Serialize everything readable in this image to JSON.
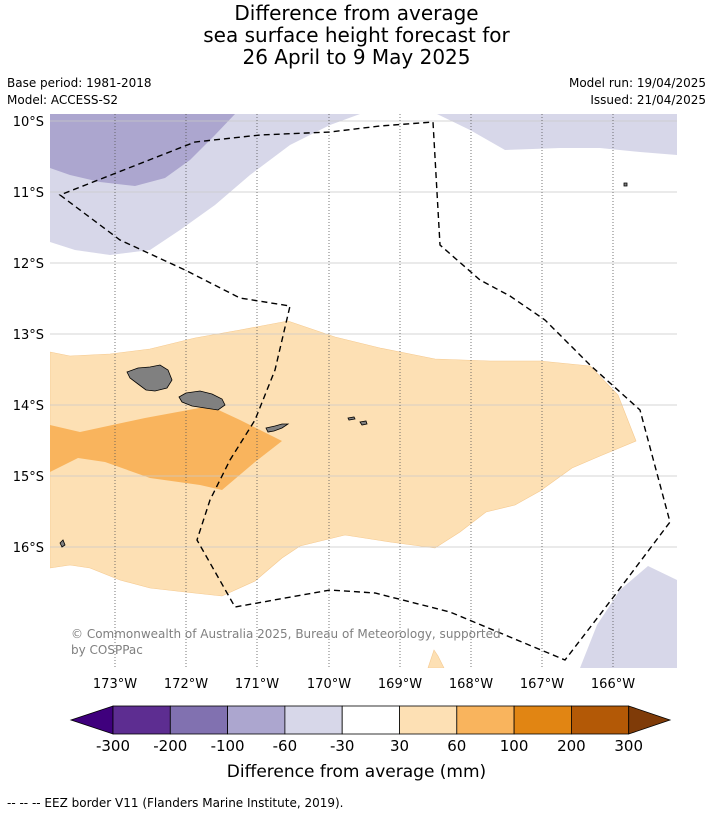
{
  "title": {
    "line1": "Difference from average",
    "line2": "sea surface height forecast for",
    "line3": "26 April to 9 May 2025"
  },
  "meta": {
    "base_period": "Base period: 1981-2018",
    "model": "Model: ACCESS-S2",
    "model_run": "Model run: 19/04/2025",
    "issued": "Issued: 21/04/2025"
  },
  "map": {
    "lon_labels": [
      "173°W",
      "172°W",
      "171°W",
      "170°W",
      "169°W",
      "168°W",
      "167°W",
      "166°W"
    ],
    "lat_labels": [
      "10°S",
      "11°S",
      "12°S",
      "13°S",
      "14°S",
      "15°S",
      "16°S"
    ],
    "copyright": "© Commonwealth of Australia 2025, Bureau of Meteorology, supported by COSPPac",
    "colors": {
      "land": "#808080",
      "purple_light": "#d7d7e9",
      "purple_mid": "#aca6cf",
      "orange_light": "#fde0b4",
      "orange_mid": "#f9b45d"
    }
  },
  "colorbar": {
    "ticks": [
      "-300",
      "-200",
      "-100",
      "-60",
      "-30",
      "30",
      "60",
      "100",
      "200",
      "300"
    ],
    "colors": [
      "#3f007d",
      "#5d2d91",
      "#8171b0",
      "#aca6cf",
      "#d7d7e9",
      "#ffffff",
      "#fde0b4",
      "#f9b45d",
      "#e18513",
      "#b35906",
      "#7f3b08"
    ],
    "label": "Difference from average (mm)"
  },
  "footer": "--  --  -- EEZ border V11 (Flanders Marine Institute, 2019)."
}
